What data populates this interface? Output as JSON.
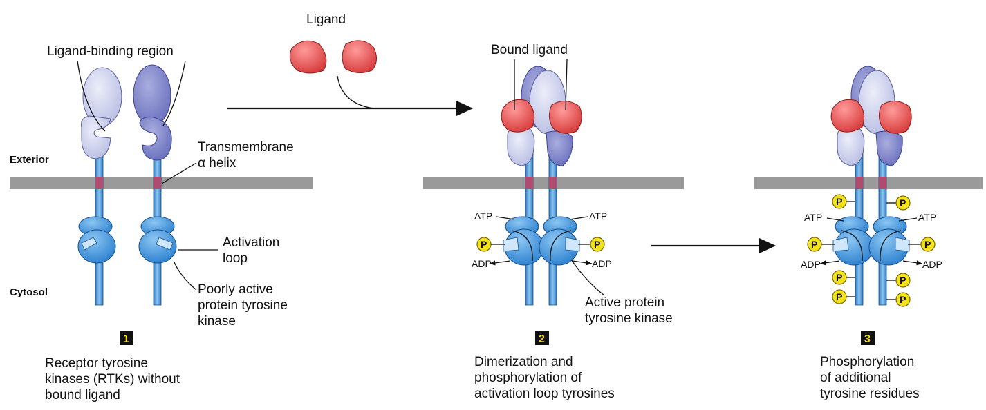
{
  "labels": {
    "ligand": "Ligand",
    "ligand_binding_region": "Ligand-binding region",
    "exterior": "Exterior",
    "cytosol": "Cytosol",
    "transmembrane_1": "Transmembrane",
    "transmembrane_2": "α helix",
    "activation_loop_1": "Activation",
    "activation_loop_2": "loop",
    "poorly_active_1": "Poorly active",
    "poorly_active_2": "protein tyrosine",
    "poorly_active_3": "kinase",
    "bound_ligand": "Bound ligand",
    "atp": "ATP",
    "adp": "ADP",
    "phosphate": "P",
    "active_kinase_1": "Active protein",
    "active_kinase_2": "tyrosine kinase"
  },
  "steps": [
    {
      "number": "1",
      "caption": [
        "Receptor tyrosine",
        "kinases (RTKs) without",
        "bound ligand"
      ]
    },
    {
      "number": "2",
      "caption": [
        "Dimerization and",
        "phosphorylation of",
        "activation loop tyrosines"
      ]
    },
    {
      "number": "3",
      "caption": [
        "Phosphorylation",
        "of additional",
        "tyrosine residues"
      ]
    }
  ],
  "colors": {
    "membrane": "#9a9a9a",
    "tm_helix": "#b04a6e",
    "receptor_light": "#c9cdea",
    "receptor_dark": "#7d82c8",
    "kinase_blue": "#3b8fd6",
    "ligand_red": "#e04545",
    "phosphate_yellow": "#f2e21a",
    "badge_bg": "#111111",
    "badge_text": "#f2d51e"
  }
}
